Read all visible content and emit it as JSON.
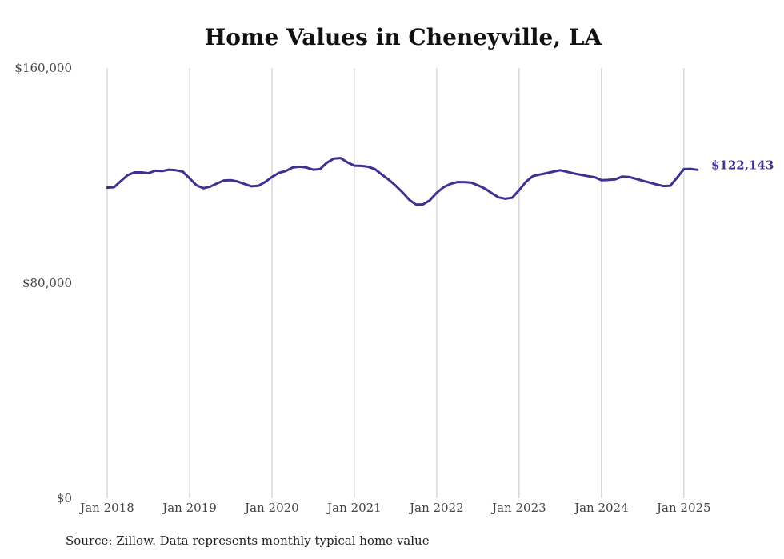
{
  "title": "Home Values in Cheneyville, LA",
  "source": "Source: Zillow. Data represents monthly typical home value",
  "colors": {
    "line": "#3c3391",
    "grid": "#c4c4c4",
    "axis_text": "#444444"
  },
  "chart_data": {
    "type": "line",
    "title": "Home Values in Cheneyville, LA",
    "xlabel": "",
    "ylabel": "",
    "ylim": [
      0,
      160000
    ],
    "xlim": [
      "2018-01",
      "2025-03"
    ],
    "yticks": [
      0,
      80000,
      160000
    ],
    "ytick_labels": [
      "$0",
      "$80,000",
      "$160,000"
    ],
    "xticks": [
      "2018-01",
      "2019-01",
      "2020-01",
      "2021-01",
      "2022-01",
      "2023-01",
      "2024-01",
      "2025-01"
    ],
    "xtick_labels": [
      "Jan 2018",
      "Jan 2019",
      "Jan 2020",
      "Jan 2021",
      "Jan 2022",
      "Jan 2023",
      "Jan 2024",
      "Jan 2025"
    ],
    "grid": "vertical",
    "end_label": "$122,143",
    "series": [
      {
        "x": [
          "2018-01",
          "2018-02",
          "2018-03",
          "2018-04",
          "2018-05",
          "2018-06",
          "2018-07",
          "2018-08",
          "2018-09",
          "2018-10",
          "2018-11",
          "2018-12",
          "2019-01",
          "2019-02",
          "2019-03",
          "2019-04",
          "2019-05",
          "2019-06",
          "2019-07",
          "2019-08",
          "2019-09",
          "2019-10",
          "2019-11",
          "2019-12",
          "2020-01",
          "2020-02",
          "2020-03",
          "2020-04",
          "2020-05",
          "2020-06",
          "2020-07",
          "2020-08",
          "2020-09",
          "2020-10",
          "2020-11",
          "2020-12",
          "2021-01",
          "2021-02",
          "2021-03",
          "2021-04",
          "2021-05",
          "2021-06",
          "2021-07",
          "2021-08",
          "2021-09",
          "2021-10",
          "2021-11",
          "2021-12",
          "2022-01",
          "2022-02",
          "2022-03",
          "2022-04",
          "2022-05",
          "2022-06",
          "2022-07",
          "2022-08",
          "2022-09",
          "2022-10",
          "2022-11",
          "2022-12",
          "2023-01",
          "2023-02",
          "2023-03",
          "2023-04",
          "2023-05",
          "2023-06",
          "2023-07",
          "2023-08",
          "2023-09",
          "2023-10",
          "2023-11",
          "2023-12",
          "2024-01",
          "2024-02",
          "2024-03",
          "2024-04",
          "2024-05",
          "2024-06",
          "2024-07",
          "2024-08",
          "2024-09",
          "2024-10",
          "2024-11",
          "2024-12",
          "2025-01",
          "2025-02",
          "2025-03"
        ],
        "values": [
          115500,
          115700,
          118000,
          120200,
          121200,
          121200,
          120900,
          121800,
          121700,
          122200,
          122000,
          121500,
          119000,
          116400,
          115300,
          115900,
          117100,
          118200,
          118300,
          117800,
          116900,
          116000,
          116200,
          117600,
          119500,
          121000,
          121700,
          123000,
          123300,
          123000,
          122200,
          122400,
          124800,
          126300,
          126500,
          124900,
          123700,
          123600,
          123300,
          122400,
          120400,
          118500,
          116300,
          113800,
          111000,
          109200,
          109300,
          110800,
          113600,
          115700,
          116900,
          117600,
          117600,
          117400,
          116400,
          115200,
          113500,
          111900,
          111400,
          111800,
          114600,
          117700,
          119800,
          120400,
          120900,
          121500,
          122000,
          121400,
          120800,
          120300,
          119800,
          119400,
          118300,
          118400,
          118600,
          119600,
          119500,
          118800,
          118100,
          117400,
          116700,
          116100,
          116200,
          119200,
          122400,
          122500,
          122143
        ]
      }
    ]
  }
}
